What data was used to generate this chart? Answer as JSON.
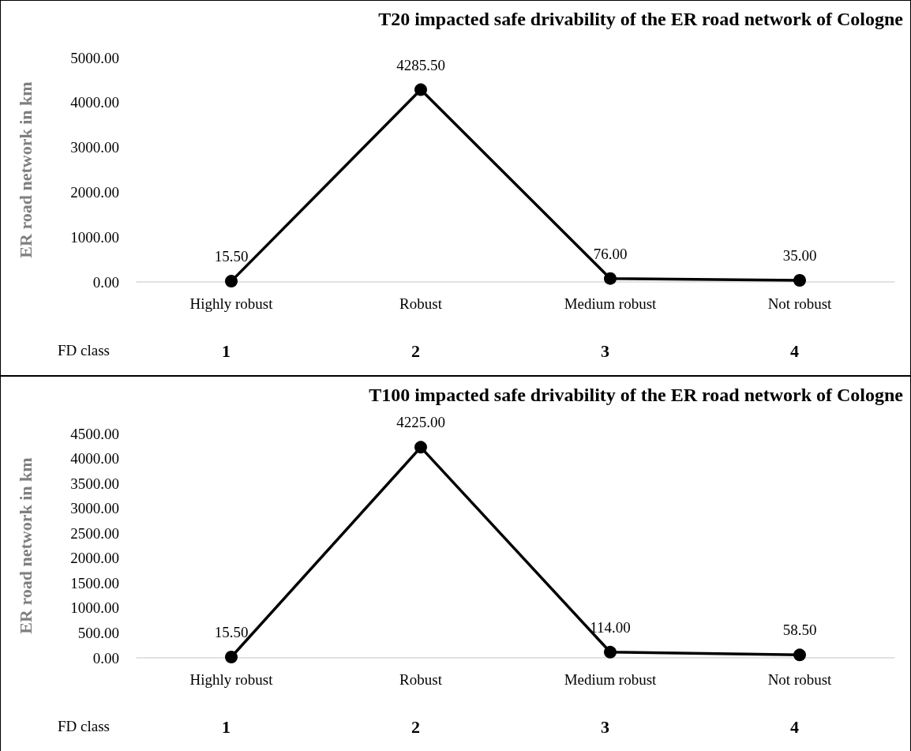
{
  "chart_data": [
    {
      "type": "line",
      "title": "T20 impacted safe drivability of the ER road network of Cologne",
      "ylabel": "ER road network in km",
      "categories": [
        "Highly robust",
        "Robust",
        "Medium robust",
        "Not robust"
      ],
      "series": [
        {
          "color": "#000000",
          "values": [
            15.5,
            4285.5,
            76,
            35
          ],
          "value_labels": [
            "15.50",
            "4285.50",
            "76.00",
            "35.00"
          ]
        }
      ],
      "ylim": [
        0,
        5000
      ],
      "yticks": [
        {
          "value": 0,
          "label": "0.00"
        },
        {
          "value": 1000,
          "label": "1000.00"
        },
        {
          "value": 2000,
          "label": "2000.00"
        },
        {
          "value": 3000,
          "label": "3000.00"
        },
        {
          "value": 4000,
          "label": "4000.00"
        },
        {
          "value": 5000,
          "label": "5000.00"
        }
      ],
      "grid": false,
      "marker": "circle",
      "line_style": "solid",
      "annotations": [
        "FD class",
        "1",
        "2",
        "3",
        "4"
      ]
    },
    {
      "type": "line",
      "title": "T100 impacted safe drivability of the ER road network of Cologne",
      "ylabel": "ER road network in km",
      "categories": [
        "Highly robust",
        "Robust",
        "Medium robust",
        "Not robust"
      ],
      "series": [
        {
          "color": "#000000",
          "values": [
            15.5,
            4225,
            114,
            58.5
          ],
          "value_labels": [
            "15.50",
            "4225.00",
            "114.00",
            "58.50"
          ]
        }
      ],
      "ylim": [
        0,
        4500
      ],
      "yticks": [
        {
          "value": 0,
          "label": "0.00"
        },
        {
          "value": 500,
          "label": "500.00"
        },
        {
          "value": 1000,
          "label": "1000.00"
        },
        {
          "value": 1500,
          "label": "1500.00"
        },
        {
          "value": 2000,
          "label": "2000.00"
        },
        {
          "value": 2500,
          "label": "2500.00"
        },
        {
          "value": 3000,
          "label": "3000.00"
        },
        {
          "value": 3500,
          "label": "3500.00"
        },
        {
          "value": 4000,
          "label": "4000.00"
        },
        {
          "value": 4500,
          "label": "4500.00"
        }
      ],
      "grid": false,
      "marker": "circle",
      "line_style": "solid",
      "annotations": [
        "FD class",
        "1",
        "2",
        "3",
        "4"
      ]
    }
  ]
}
